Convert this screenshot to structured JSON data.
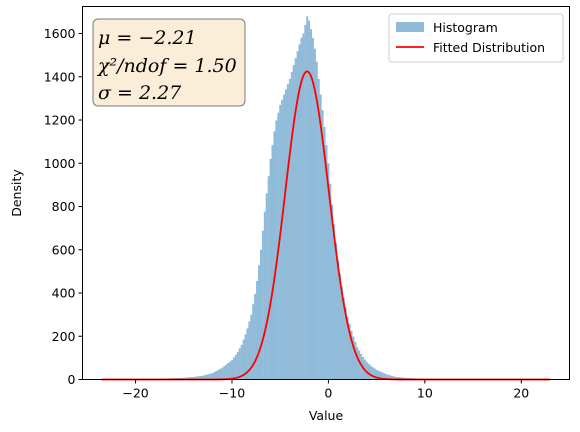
{
  "chart_data": {
    "type": "bar",
    "xlabel": "Value",
    "ylabel": "Density",
    "xlim": [
      -25.5,
      25
    ],
    "ylim": [
      0,
      1725
    ],
    "xticks": [
      -20,
      -10,
      0,
      10,
      20
    ],
    "xtick_labels": [
      "−20",
      "−10",
      "0",
      "10",
      "20"
    ],
    "yticks": [
      0,
      200,
      400,
      600,
      800,
      1000,
      1200,
      1400,
      1600
    ],
    "ytick_labels": [
      "0",
      "200",
      "400",
      "600",
      "800",
      "1000",
      "1200",
      "1400",
      "1600"
    ],
    "grid": false,
    "legend": {
      "placement": "top-right",
      "entries": [
        "Histogram",
        "Fitted Distribution"
      ]
    },
    "stats_box": {
      "placement": "top-left",
      "lines": [
        "μ = −2.21",
        "χ²/ndof = 1.50",
        "σ = 2.27"
      ]
    },
    "histogram": {
      "name": "Histogram",
      "color": "#1f77b4",
      "opacity": 0.5,
      "bin_width": 0.2,
      "bin_centers": [
        -24.0,
        -23.0,
        -22.0,
        -21.0,
        -20.0,
        -19.0,
        -18.0,
        -17.0,
        -16.0,
        -15.0,
        -14.0,
        -13.0,
        -12.0,
        -11.0,
        -10.0,
        -9.5,
        -9.0,
        -8.5,
        -8.0,
        -7.5,
        -7.0,
        -6.5,
        -6.0,
        -5.5,
        -5.0,
        -4.5,
        -4.0,
        -3.5,
        -3.0,
        -2.8,
        -2.6,
        -2.4,
        -2.2,
        -2.0,
        -1.8,
        -1.6,
        -1.4,
        -1.2,
        -1.0,
        -0.5,
        0.0,
        0.5,
        1.0,
        1.5,
        2.0,
        2.5,
        3.0,
        3.5,
        4.0,
        4.5,
        5.0,
        5.5,
        6.0,
        6.5,
        7.0,
        8.0,
        9.0,
        10.0,
        11.0,
        12.0,
        13.0,
        14.0,
        15.0,
        16.0,
        17.0,
        18.0,
        19.0,
        20.0,
        21.0,
        22.0,
        23.0
      ],
      "values": [
        1,
        1,
        1,
        2,
        2,
        3,
        3,
        4,
        6,
        8,
        12,
        18,
        30,
        55,
        90,
        120,
        160,
        220,
        300,
        420,
        600,
        820,
        1020,
        1180,
        1270,
        1330,
        1390,
        1470,
        1550,
        1580,
        1600,
        1640,
        1680,
        1660,
        1620,
        1580,
        1530,
        1470,
        1390,
        1210,
        1000,
        760,
        550,
        400,
        290,
        210,
        150,
        110,
        80,
        60,
        45,
        35,
        25,
        18,
        12,
        8,
        5,
        3,
        2,
        2,
        1,
        1,
        1,
        1,
        1,
        1,
        1,
        1,
        1,
        1,
        1
      ]
    },
    "fit": {
      "name": "Fitted Distribution",
      "color": "#ff0000",
      "mu": -2.21,
      "sigma": 2.27,
      "peak": 1425,
      "x_range": [
        -23.5,
        23.0
      ]
    }
  }
}
